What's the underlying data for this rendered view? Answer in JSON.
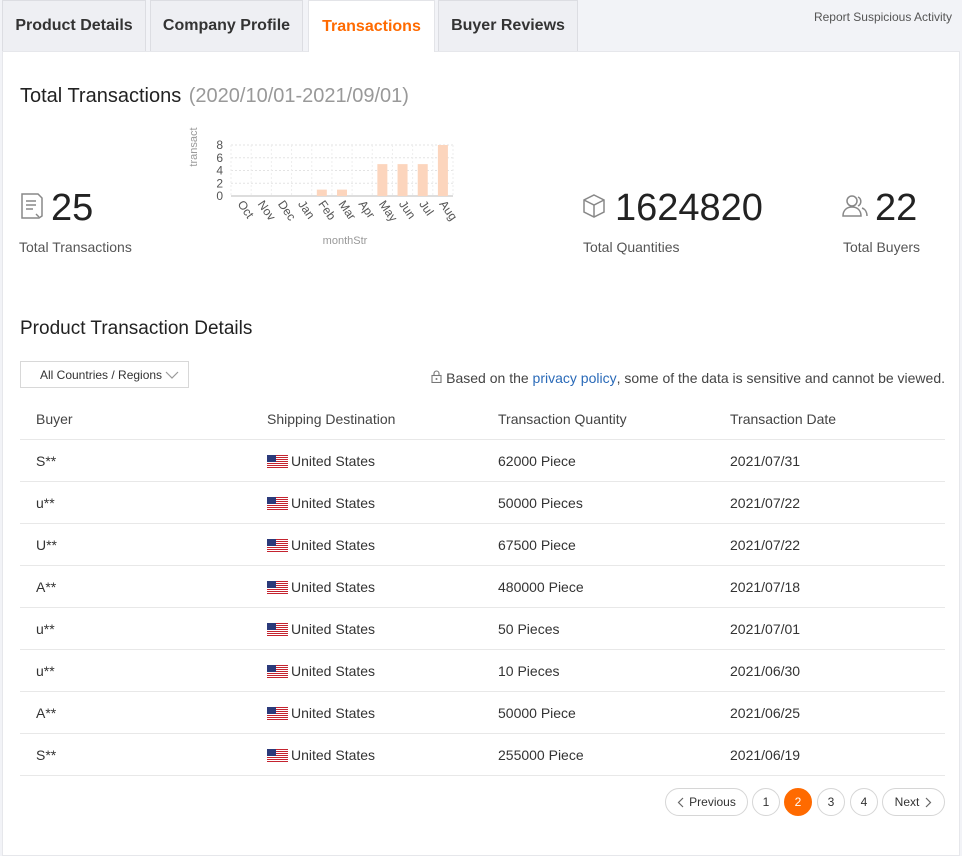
{
  "tabs": [
    {
      "label": "Product Details",
      "active": false
    },
    {
      "label": "Company Profile",
      "active": false
    },
    {
      "label": "Transactions",
      "active": true
    },
    {
      "label": "Buyer Reviews",
      "active": false
    }
  ],
  "report_link": "Report Suspicious Activity",
  "summary": {
    "title": "Total Transactions",
    "range": "(2020/10/01-2021/09/01)",
    "total_transactions": {
      "value": "25",
      "label": "Total Transactions",
      "icon": "document-icon"
    },
    "total_quantities": {
      "value": "1624820",
      "label": "Total Quantities",
      "icon": "box-icon"
    },
    "total_buyers": {
      "value": "22",
      "label": "Total Buyers",
      "icon": "users-icon"
    }
  },
  "chart_data": {
    "type": "bar",
    "categories": [
      "Oct",
      "Nov",
      "Dec",
      "Jan",
      "Feb",
      "Mar",
      "Apr",
      "May",
      "Jun",
      "Jul",
      "Aug"
    ],
    "values": [
      0,
      0,
      0,
      0,
      1,
      1,
      0,
      5,
      5,
      5,
      8
    ],
    "xlabel": "monthStr",
    "ylabel": "transact",
    "yticks": [
      0,
      2,
      4,
      6,
      8
    ],
    "ylim": [
      0,
      8
    ],
    "bar_color": "#fcd5bd",
    "grid": true
  },
  "details": {
    "title": "Product Transaction Details",
    "filter": {
      "selected": "All Countries / Regions"
    },
    "privacy_prefix": "Based on the ",
    "privacy_link": "privacy policy",
    "privacy_suffix": ", some of the data is sensitive and cannot be viewed.",
    "columns": [
      "Buyer",
      "Shipping Destination",
      "Transaction Quantity",
      "Transaction Date"
    ],
    "rows": [
      {
        "buyer": "S**",
        "destination": "United States",
        "quantity": "62000 Piece",
        "date": "2021/07/31"
      },
      {
        "buyer": "u**",
        "destination": "United States",
        "quantity": "50000 Pieces",
        "date": "2021/07/22"
      },
      {
        "buyer": "U**",
        "destination": "United States",
        "quantity": "67500 Piece",
        "date": "2021/07/22"
      },
      {
        "buyer": "A**",
        "destination": "United States",
        "quantity": "480000 Piece",
        "date": "2021/07/18"
      },
      {
        "buyer": "u**",
        "destination": "United States",
        "quantity": "50 Pieces",
        "date": "2021/07/01"
      },
      {
        "buyer": "u**",
        "destination": "United States",
        "quantity": "10 Pieces",
        "date": "2021/06/30"
      },
      {
        "buyer": "A**",
        "destination": "United States",
        "quantity": "50000 Piece",
        "date": "2021/06/25"
      },
      {
        "buyer": "S**",
        "destination": "United States",
        "quantity": "255000 Piece",
        "date": "2021/06/19"
      }
    ]
  },
  "pagination": {
    "previous": "Previous",
    "next": "Next",
    "pages": [
      "1",
      "2",
      "3",
      "4"
    ],
    "current": "2"
  },
  "colors": {
    "accent": "#ff6a00",
    "link": "#2a6ab8"
  }
}
